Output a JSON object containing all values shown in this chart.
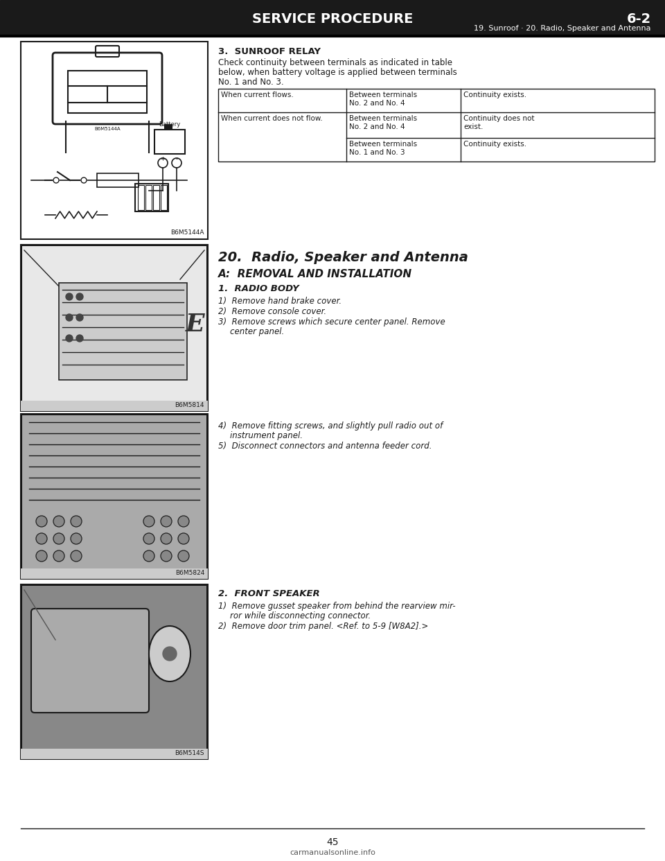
{
  "bg_color": "#1a1a1a",
  "page_bg": "#ffffff",
  "page_width": 9.6,
  "page_height": 12.42,
  "header_title": "SERVICE PROCEDURE",
  "header_right": "6-2",
  "header_subtitle": "19. Sunroof · 20. Radio, Speaker and Antenna",
  "section3_title": "3.  SUNROOF RELAY",
  "section3_body_line1": "Check continuity between terminals as indicated in table",
  "section3_body_line2": "below, when battery voltage is applied between terminals",
  "section3_body_line3": "No. 1 and No. 3.",
  "table_col1_row1": "When current flows.",
  "table_col2_row1": "Between terminals\nNo. 2 and No. 4",
  "table_col3_row1": "Continuity exists.",
  "table_col1_row2": "When current does not flow.",
  "table_col2_row2a": "Between terminals\nNo. 2 and No. 4",
  "table_col3_row2a": "Continuity does not\nexist.",
  "table_col2_row2b": "Between terminals\nNo. 1 and No. 3",
  "table_col3_row2b": "Continuity exists.",
  "section20_title": "20.  Radio, Speaker and Antenna",
  "sectionA_title": "A:  REMOVAL AND INSTALLATION",
  "section1_title": "1.  RADIO BODY",
  "s1_item1": "1)  Remove hand brake cover.",
  "s1_item2": "2)  Remove console cover.",
  "s1_item3a": "3)  Remove screws which secure center panel. Remove",
  "s1_item3b": "center panel.",
  "s4_item4a": "4)  Remove fitting screws, and slightly pull radio out of",
  "s4_item4b": "instrument panel.",
  "s4_item5": "5)  Disconnect connectors and antenna feeder cord.",
  "section2_title": "2.  FRONT SPEAKER",
  "s2_item1a": "1)  Remove gusset speaker from behind the rearview mir-",
  "s2_item1b": "ror while disconnecting connector.",
  "s2_item2": "2)  Remove door trim panel. <Ref. to 5-9 [W8A2].>",
  "fig_label1": "B6M5144A",
  "fig_label2": "B6M5814",
  "fig_label3": "B6M5824",
  "fig_label4": "B6M514S",
  "page_number": "45",
  "watermark": "carmanualsonline.info",
  "header_band_color": "#1a1a1a",
  "header_text_color": "#ffffff",
  "text_color": "#1a1a1a",
  "line_color": "#1a1a1a"
}
